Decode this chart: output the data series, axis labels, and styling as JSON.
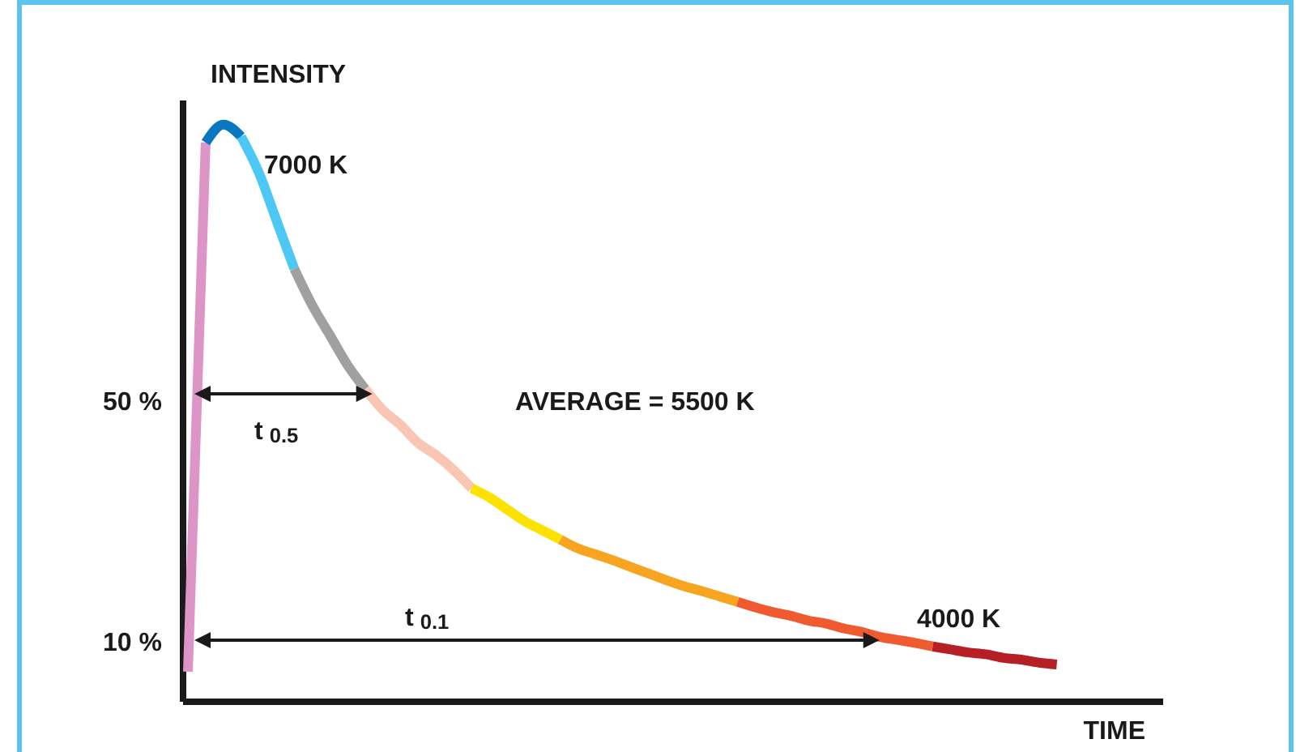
{
  "chart_data": {
    "type": "line",
    "xlabel": "TIME",
    "ylabel": "INTENSITY",
    "categories": [
      null,
      null,
      null,
      null,
      null,
      null,
      null,
      null,
      null,
      null,
      null,
      null,
      null,
      null,
      null,
      null,
      null,
      null,
      null,
      null,
      null,
      null,
      null,
      null,
      null,
      null,
      null,
      null,
      null,
      null,
      null,
      null,
      null,
      null,
      null,
      null,
      null,
      null,
      null,
      null,
      null,
      null,
      null,
      null,
      null,
      null,
      null,
      null,
      null,
      null,
      null,
      null,
      null,
      null,
      null,
      null
    ],
    "ylim": [
      0,
      100
    ],
    "yticks": [
      {
        "value": 50,
        "label": "50 %"
      },
      {
        "value": 10,
        "label": "10 %"
      }
    ],
    "series": [
      {
        "color": "#dd94c6",
        "values": [
          5,
          93,
          null,
          null,
          null,
          null,
          null,
          null,
          null,
          null,
          null,
          null,
          null,
          null,
          null,
          null,
          null,
          null,
          null,
          null,
          null,
          null,
          null,
          null,
          null,
          null,
          null,
          null,
          null,
          null,
          null,
          null,
          null,
          null,
          null,
          null,
          null,
          null,
          null,
          null,
          null,
          null,
          null,
          null,
          null,
          null,
          null,
          null,
          null,
          null,
          null,
          null,
          null,
          null,
          null,
          null
        ]
      },
      {
        "color": "#0a78c0",
        "values": [
          null,
          93,
          96,
          94,
          null,
          null,
          null,
          null,
          null,
          null,
          null,
          null,
          null,
          null,
          null,
          null,
          null,
          null,
          null,
          null,
          null,
          null,
          null,
          null,
          null,
          null,
          null,
          null,
          null,
          null,
          null,
          null,
          null,
          null,
          null,
          null,
          null,
          null,
          null,
          null,
          null,
          null,
          null,
          null,
          null,
          null,
          null,
          null,
          null,
          null,
          null,
          null,
          null,
          null,
          null,
          null
        ]
      },
      {
        "color": "#4dc8f4",
        "values": [
          null,
          null,
          null,
          94,
          88,
          80,
          72,
          null,
          null,
          null,
          null,
          null,
          null,
          null,
          null,
          null,
          null,
          null,
          null,
          null,
          null,
          null,
          null,
          null,
          null,
          null,
          null,
          null,
          null,
          null,
          null,
          null,
          null,
          null,
          null,
          null,
          null,
          null,
          null,
          null,
          null,
          null,
          null,
          null,
          null,
          null,
          null,
          null,
          null,
          null,
          null,
          null,
          null,
          null,
          null,
          null
        ]
      },
      {
        "color": "#a0a0a0",
        "values": [
          null,
          null,
          null,
          null,
          null,
          null,
          72,
          66,
          61,
          56,
          52,
          null,
          null,
          null,
          null,
          null,
          null,
          null,
          null,
          null,
          null,
          null,
          null,
          null,
          null,
          null,
          null,
          null,
          null,
          null,
          null,
          null,
          null,
          null,
          null,
          null,
          null,
          null,
          null,
          null,
          null,
          null,
          null,
          null,
          null,
          null,
          null,
          null,
          null,
          null,
          null,
          null,
          null,
          null,
          null,
          null
        ]
      },
      {
        "color": "#f9c6b3",
        "values": [
          null,
          null,
          null,
          null,
          null,
          null,
          null,
          null,
          null,
          null,
          52,
          48.5,
          46,
          43,
          41,
          38.5,
          35.5,
          null,
          null,
          null,
          null,
          null,
          null,
          null,
          null,
          null,
          null,
          null,
          null,
          null,
          null,
          null,
          null,
          null,
          null,
          null,
          null,
          null,
          null,
          null,
          null,
          null,
          null,
          null,
          null,
          null,
          null,
          null,
          null,
          null,
          null,
          null,
          null,
          null,
          null,
          null
        ]
      },
      {
        "color": "#fde200",
        "values": [
          null,
          null,
          null,
          null,
          null,
          null,
          null,
          null,
          null,
          null,
          null,
          null,
          null,
          null,
          null,
          null,
          35.5,
          34,
          32,
          30,
          28.5,
          27,
          null,
          null,
          null,
          null,
          null,
          null,
          null,
          null,
          null,
          null,
          null,
          null,
          null,
          null,
          null,
          null,
          null,
          null,
          null,
          null,
          null,
          null,
          null,
          null,
          null,
          null,
          null,
          null,
          null,
          null,
          null,
          null,
          null,
          null
        ]
      },
      {
        "color": "#f7a520",
        "values": [
          null,
          null,
          null,
          null,
          null,
          null,
          null,
          null,
          null,
          null,
          null,
          null,
          null,
          null,
          null,
          null,
          null,
          null,
          null,
          null,
          null,
          27,
          25.5,
          24.5,
          23.5,
          22.4,
          21.3,
          20.2,
          19.2,
          18.4,
          17.5,
          16.6,
          null,
          null,
          null,
          null,
          null,
          null,
          null,
          null,
          null,
          null,
          null,
          null,
          null,
          null,
          null,
          null,
          null,
          null,
          null,
          null,
          null,
          null,
          null,
          null
        ]
      },
      {
        "color": "#ef5a2e",
        "values": [
          null,
          null,
          null,
          null,
          null,
          null,
          null,
          null,
          null,
          null,
          null,
          null,
          null,
          null,
          null,
          null,
          null,
          null,
          null,
          null,
          null,
          null,
          null,
          null,
          null,
          null,
          null,
          null,
          null,
          null,
          null,
          16.6,
          15.7,
          14.9,
          14.3,
          13.5,
          13,
          12.2,
          11.6,
          10.8,
          10.3,
          9.8,
          9.2,
          null,
          null,
          null,
          null,
          null,
          null,
          null,
          null,
          null,
          null,
          null,
          null,
          null
        ]
      },
      {
        "color": "#b61f25",
        "values": [
          null,
          null,
          null,
          null,
          null,
          null,
          null,
          null,
          null,
          null,
          null,
          null,
          null,
          null,
          null,
          null,
          null,
          null,
          null,
          null,
          null,
          null,
          null,
          null,
          null,
          null,
          null,
          null,
          null,
          null,
          null,
          null,
          null,
          null,
          null,
          null,
          null,
          null,
          null,
          null,
          null,
          null,
          9.2,
          8.7,
          8.2,
          7.9,
          7.3,
          7.0,
          6.5,
          6.2,
          null,
          null,
          null,
          null,
          null,
          null
        ]
      }
    ],
    "annotations": [
      "7000 K",
      "AVERAGE = 5500 K",
      "4000 K",
      "t$_{0.5}$",
      "t$_{0.1}$"
    ]
  }
}
